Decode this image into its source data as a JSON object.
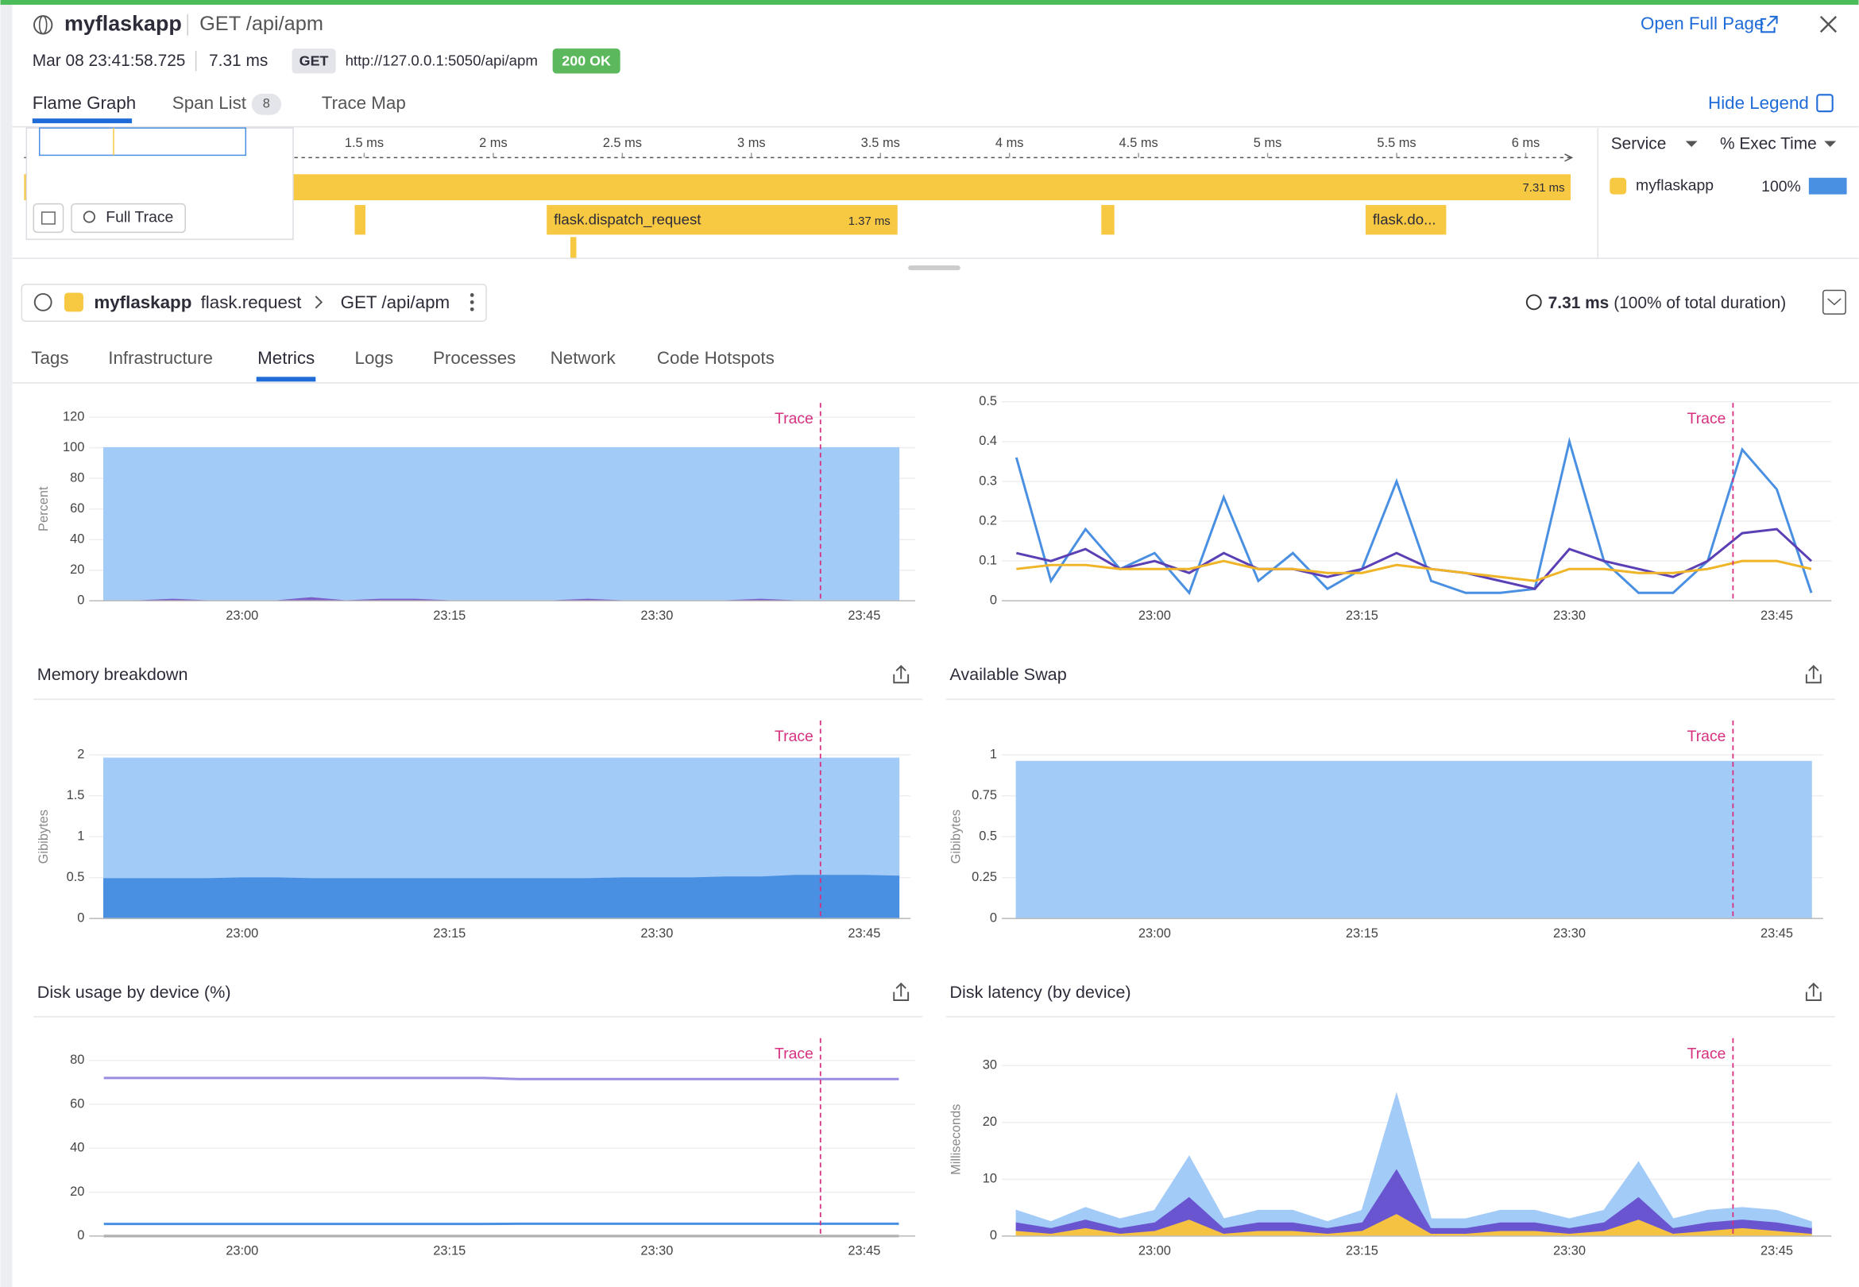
{
  "header": {
    "app": "myflaskapp",
    "resource": "GET /api/apm",
    "timestamp": "Mar 08 23:41:58.725",
    "duration": "7.31 ms",
    "method": "GET",
    "url": "http://127.0.0.1:5050/api/apm",
    "status": "200 OK",
    "open_full_page": "Open Full Page"
  },
  "top_tabs": {
    "items": [
      "Flame Graph",
      "Span List",
      "Trace Map"
    ],
    "span_count": 8,
    "hide_legend": "Hide Legend"
  },
  "flame_graph": {
    "xticks": [
      {
        "value": 1.5,
        "label": "1.5 ms"
      },
      {
        "value": 2,
        "label": "2 ms"
      },
      {
        "value": 2.5,
        "label": "2.5 ms"
      },
      {
        "value": 3,
        "label": "3 ms"
      },
      {
        "value": 3.5,
        "label": "3.5 ms"
      },
      {
        "value": 4,
        "label": "4 ms"
      },
      {
        "value": 4.5,
        "label": "4.5 ms"
      },
      {
        "value": 5,
        "label": "5 ms"
      },
      {
        "value": 5.5,
        "label": "5.5 ms"
      },
      {
        "value": 6,
        "label": "6 ms"
      }
    ],
    "root_duration": "7.31 ms",
    "dispatch_name": "flask.dispatch_request",
    "dispatch_duration": "1.37 ms",
    "other_name": "flask.do...",
    "full_trace": "Full Trace"
  },
  "legend": {
    "service_header": "Service",
    "exec_header": "% Exec Time",
    "service": "myflaskapp",
    "exec_time": 100,
    "exec_time_label": "100%"
  },
  "span": {
    "service": "myflaskapp",
    "operation": "flask.request",
    "resource": "GET /api/apm",
    "duration": "7.31 ms",
    "duration_note": "(100% of total duration)"
  },
  "detail_tabs": [
    "Tags",
    "Infrastructure",
    "Metrics",
    "Logs",
    "Processes",
    "Network",
    "Code Hotspots"
  ],
  "chart_data": [
    {
      "type": "area",
      "stacked": false,
      "ylabel": "Percent",
      "annotation": "Trace",
      "grid": true,
      "ylim": [
        0,
        120
      ],
      "yticks": [
        0,
        20,
        40,
        60,
        80,
        100,
        120
      ],
      "categories": [
        null,
        null,
        null,
        null,
        "23:00",
        null,
        null,
        null,
        null,
        null,
        "23:15",
        null,
        null,
        null,
        null,
        null,
        "23:30",
        null,
        null,
        null,
        null,
        null,
        "23:45",
        null
      ],
      "series": [
        {
          "color": "#a3cbf7",
          "values": [
            100,
            100,
            100,
            100,
            100,
            100,
            100,
            100,
            100,
            100,
            100,
            100,
            100,
            100,
            100,
            100,
            100,
            100,
            100,
            100,
            100,
            100,
            100,
            100
          ]
        },
        {
          "color": "#7c5ec9",
          "values": [
            0,
            0,
            1,
            0,
            0,
            0,
            2,
            0,
            1,
            1,
            0,
            0,
            0,
            0,
            1,
            0,
            0,
            0,
            0,
            1,
            0,
            0,
            0,
            0
          ]
        }
      ]
    },
    {
      "type": "line",
      "annotation": "Trace",
      "grid": true,
      "ylim": [
        0,
        0.5
      ],
      "yticks": [
        0,
        0.1,
        0.2,
        0.3,
        0.4,
        0.5
      ],
      "categories": [
        null,
        null,
        null,
        null,
        "23:00",
        null,
        null,
        null,
        null,
        null,
        "23:15",
        null,
        null,
        null,
        null,
        null,
        "23:30",
        null,
        null,
        null,
        null,
        null,
        "23:45",
        null
      ],
      "series": [
        {
          "color": "#4a90e2",
          "values": [
            0.36,
            0.05,
            0.18,
            0.08,
            0.12,
            0.02,
            0.26,
            0.05,
            0.12,
            0.03,
            0.08,
            0.3,
            0.05,
            0.02,
            0.02,
            0.03,
            0.4,
            0.1,
            0.02,
            0.02,
            0.1,
            0.38,
            0.28,
            0.02
          ]
        },
        {
          "color": "#5b3fb5",
          "values": [
            0.12,
            0.1,
            0.13,
            0.08,
            0.1,
            0.07,
            0.12,
            0.08,
            0.08,
            0.06,
            0.08,
            0.12,
            0.08,
            0.07,
            0.05,
            0.03,
            0.13,
            0.1,
            0.08,
            0.06,
            0.1,
            0.17,
            0.18,
            0.1
          ]
        },
        {
          "color": "#f0b429",
          "values": [
            0.08,
            0.09,
            0.09,
            0.08,
            0.08,
            0.08,
            0.1,
            0.08,
            0.08,
            0.07,
            0.07,
            0.09,
            0.08,
            0.07,
            0.06,
            0.05,
            0.08,
            0.08,
            0.07,
            0.07,
            0.08,
            0.1,
            0.1,
            0.08
          ]
        }
      ]
    },
    {
      "type": "area",
      "stacked": true,
      "title": "Memory breakdown",
      "ylabel": "Gibibytes",
      "annotation": "Trace",
      "grid": true,
      "ylim": [
        0,
        2
      ],
      "yticks": [
        0,
        0.5,
        1,
        1.5,
        2
      ],
      "categories": [
        null,
        null,
        null,
        null,
        "23:00",
        null,
        null,
        null,
        null,
        null,
        "23:15",
        null,
        null,
        null,
        null,
        null,
        "23:30",
        null,
        null,
        null,
        null,
        null,
        "23:45",
        null
      ],
      "series": [
        {
          "color": "#4a90e2",
          "values": [
            0.5,
            0.5,
            0.5,
            0.5,
            0.51,
            0.51,
            0.5,
            0.5,
            0.5,
            0.5,
            0.5,
            0.5,
            0.5,
            0.5,
            0.5,
            0.51,
            0.51,
            0.51,
            0.52,
            0.52,
            0.54,
            0.54,
            0.54,
            0.53
          ]
        },
        {
          "color": "#a3cbf7",
          "values": [
            1.46,
            1.46,
            1.46,
            1.46,
            1.45,
            1.45,
            1.46,
            1.46,
            1.46,
            1.46,
            1.46,
            1.46,
            1.46,
            1.46,
            1.46,
            1.45,
            1.45,
            1.45,
            1.44,
            1.44,
            1.42,
            1.42,
            1.42,
            1.43
          ]
        }
      ]
    },
    {
      "type": "area",
      "stacked": false,
      "title": "Available Swap",
      "ylabel": "Gibibytes",
      "annotation": "Trace",
      "grid": true,
      "ylim": [
        0,
        1
      ],
      "yticks": [
        0,
        0.25,
        0.5,
        0.75,
        1
      ],
      "categories": [
        null,
        null,
        null,
        null,
        "23:00",
        null,
        null,
        null,
        null,
        null,
        "23:15",
        null,
        null,
        null,
        null,
        null,
        "23:30",
        null,
        null,
        null,
        null,
        null,
        "23:45",
        null
      ],
      "series": [
        {
          "color": "#a3cbf7",
          "values": [
            0.96,
            0.96,
            0.96,
            0.96,
            0.96,
            0.96,
            0.96,
            0.96,
            0.96,
            0.96,
            0.96,
            0.96,
            0.96,
            0.96,
            0.96,
            0.96,
            0.96,
            0.96,
            0.96,
            0.96,
            0.96,
            0.96,
            0.96,
            0.96
          ]
        }
      ]
    },
    {
      "type": "line",
      "title": "Disk usage by device (%)",
      "annotation": "Trace",
      "grid": true,
      "ylim": [
        0,
        88
      ],
      "yticks": [
        0,
        20,
        40,
        60,
        80
      ],
      "categories": [
        null,
        null,
        null,
        null,
        "23:00",
        null,
        null,
        null,
        null,
        null,
        "23:15",
        null,
        null,
        null,
        null,
        null,
        "23:30",
        null,
        null,
        null,
        null,
        null,
        "23:45",
        null
      ],
      "series": [
        {
          "color": "#9a8ce0",
          "values": [
            72,
            72,
            72,
            72,
            72,
            72,
            72,
            72,
            72,
            72,
            72,
            72,
            71.5,
            71.5,
            71.5,
            71.5,
            71.5,
            71.5,
            71.5,
            71.5,
            71.5,
            71.5,
            71.5,
            71.5
          ]
        },
        {
          "color": "#4a90e2",
          "values": [
            5.5,
            5.5,
            5.5,
            5.5,
            5.5,
            5.5,
            5.5,
            5.5,
            5.5,
            5.5,
            5.5,
            5.5,
            5.6,
            5.6,
            5.6,
            5.6,
            5.6,
            5.6,
            5.6,
            5.6,
            5.6,
            5.6,
            5.6,
            5.6
          ]
        },
        {
          "color": "#999999",
          "values": [
            0,
            0,
            0,
            0,
            0,
            0,
            0,
            0,
            0,
            0,
            0,
            0,
            0,
            0,
            0,
            0,
            0,
            0,
            0,
            0,
            0,
            0,
            0,
            0
          ]
        }
      ]
    },
    {
      "type": "area",
      "stacked": true,
      "title": "Disk latency (by device)",
      "ylabel": "Milliseconds",
      "annotation": "Trace",
      "grid": true,
      "ylim": [
        0,
        34
      ],
      "yticks": [
        0,
        10,
        20,
        30
      ],
      "categories": [
        null,
        null,
        null,
        null,
        "23:00",
        null,
        null,
        null,
        null,
        null,
        "23:15",
        null,
        null,
        null,
        null,
        null,
        "23:30",
        null,
        null,
        null,
        null,
        null,
        "23:45",
        null
      ],
      "series": [
        {
          "color": "#f5c242",
          "values": [
            1,
            0.5,
            1.5,
            0.5,
            1,
            3,
            0.5,
            1,
            1,
            0.5,
            1,
            4,
            0.5,
            0.5,
            1,
            1,
            0.5,
            1,
            3,
            0.5,
            1,
            1.5,
            1,
            0.5
          ]
        },
        {
          "color": "#6a55d0",
          "values": [
            1.5,
            1,
            1.5,
            1,
            1.5,
            4,
            1,
            1.5,
            1.5,
            1,
            1.5,
            8,
            1,
            1,
            1.5,
            1.5,
            1,
            1.5,
            4,
            1,
            1.5,
            1.5,
            1.5,
            1
          ]
        },
        {
          "color": "#a3cbf7",
          "values": [
            2,
            1,
            2,
            1.5,
            2,
            7,
            1.5,
            2,
            2,
            1,
            2,
            13,
            1.5,
            1.5,
            2,
            2,
            1.5,
            2,
            6,
            1.5,
            2,
            2,
            2,
            1
          ]
        }
      ]
    }
  ]
}
